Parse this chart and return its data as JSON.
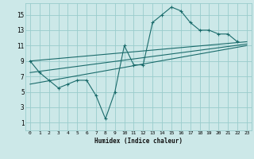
{
  "xlabel": "Humidex (Indice chaleur)",
  "background_color": "#cce8e8",
  "grid_color": "#99cccc",
  "line_color": "#1a6b6b",
  "xlim": [
    -0.5,
    23.5
  ],
  "ylim": [
    0,
    16.5
  ],
  "xticks": [
    0,
    1,
    2,
    3,
    4,
    5,
    6,
    7,
    8,
    9,
    10,
    11,
    12,
    13,
    14,
    15,
    16,
    17,
    18,
    19,
    20,
    21,
    22,
    23
  ],
  "yticks": [
    1,
    3,
    5,
    7,
    9,
    11,
    13,
    15
  ],
  "series1_x": [
    0,
    1,
    2,
    3,
    4,
    5,
    6,
    7,
    8,
    9,
    10,
    11,
    12,
    13,
    14,
    15,
    16,
    17,
    18,
    19,
    20,
    21,
    22
  ],
  "series1_y": [
    9,
    7.5,
    6.5,
    5.5,
    6.0,
    6.5,
    6.5,
    4.5,
    1.5,
    5.0,
    11.0,
    8.5,
    8.5,
    14.0,
    15.0,
    16.0,
    15.5,
    14.0,
    13.0,
    13.0,
    12.5,
    12.5,
    11.5
  ],
  "trend1_x": [
    0,
    23
  ],
  "trend1_y": [
    9.0,
    11.5
  ],
  "trend2_x": [
    0,
    23
  ],
  "trend2_y": [
    7.5,
    11.2
  ],
  "trend3_x": [
    0,
    23
  ],
  "trend3_y": [
    6.0,
    11.0
  ]
}
